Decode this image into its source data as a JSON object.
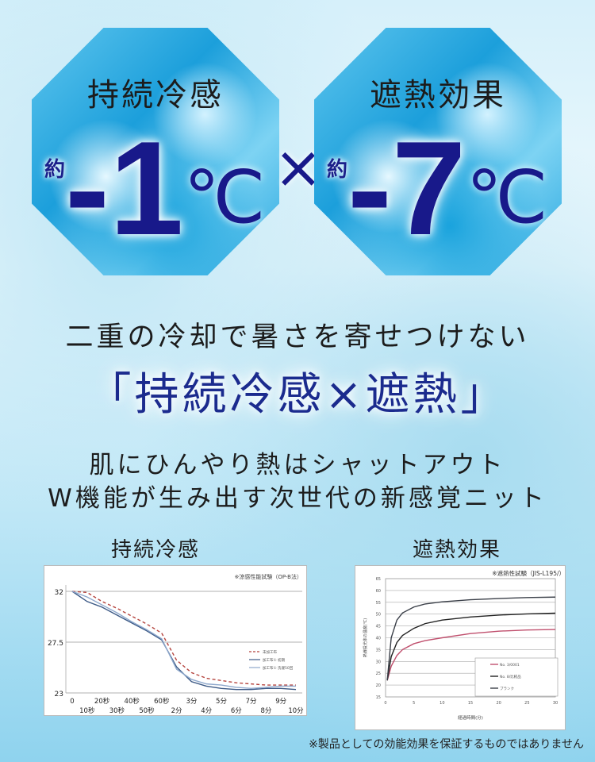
{
  "badges": [
    {
      "title": "持続冷感",
      "prefix": "約",
      "value": "-1",
      "unit": "℃"
    },
    {
      "title": "遮熱効果",
      "prefix": "約",
      "value": "-7",
      "unit": "℃"
    }
  ],
  "times": "×",
  "headline": "二重の冷却で暑さを寄せつけない",
  "main_copy": "「持続冷感×遮熱」",
  "lines": [
    "肌にひんやり熱はシャットアウト",
    "W機能が生み出す次世代の新感覚ニット"
  ],
  "footnote": "※製品としての効能効果を保証するものではありません",
  "chart_data": [
    {
      "type": "line",
      "title": "持続冷感",
      "note": "※涼感性能試験（OP-B法）",
      "categories": [
        "0",
        "10秒",
        "20秒",
        "30秒",
        "40秒",
        "50秒",
        "60秒",
        "2分",
        "3分",
        "4分",
        "5分",
        "6分",
        "7分",
        "8分",
        "9分",
        "10分"
      ],
      "yticks": [
        "23",
        "27.5",
        "32"
      ],
      "ylim": [
        23,
        32
      ],
      "grid": true,
      "legend": "right",
      "series": [
        {
          "name": "未加工布",
          "style": "dashed",
          "color": "#b5453f",
          "values": [
            32,
            31.9,
            31.1,
            30.5,
            29.8,
            29.1,
            28.3,
            25.9,
            24.8,
            24.3,
            24.1,
            23.9,
            23.8,
            23.7,
            23.7,
            23.7
          ]
        },
        {
          "name": "加工布① 初期",
          "style": "solid",
          "color": "#3d5a86",
          "values": [
            32,
            31.1,
            30.6,
            29.9,
            29.2,
            28.5,
            27.7,
            25.3,
            24.0,
            23.6,
            23.4,
            23.3,
            23.3,
            23.4,
            23.4,
            23.3
          ]
        },
        {
          "name": "加工布① 洗濯50回",
          "style": "solid",
          "color": "#8ea8cc",
          "values": [
            32,
            31.5,
            30.8,
            30.1,
            29.3,
            28.6,
            27.8,
            25.1,
            24.2,
            23.8,
            23.7,
            23.5,
            23.4,
            23.5,
            23.6,
            23.6
          ]
        }
      ]
    },
    {
      "type": "line",
      "title": "遮熱効果",
      "note": "※遮熱性試験（JIS-L195/）",
      "xlabel": "経過時間(分)",
      "ylabel": "熱線投光体の温度(℃)",
      "xlim": [
        0,
        30
      ],
      "ylim": [
        15,
        65
      ],
      "xticks": [
        "0",
        "5",
        "10",
        "15",
        "20",
        "25",
        "30"
      ],
      "yticks": [
        "15",
        "20",
        "25",
        "30",
        "35",
        "40",
        "45",
        "50",
        "55",
        "60",
        "65"
      ],
      "grid": true,
      "legend": "bottom-right",
      "x": [
        0.3,
        1,
        2,
        3,
        5,
        7,
        10,
        15,
        20,
        25,
        30
      ],
      "series": [
        {
          "name": "No. 3/0001",
          "color": "#c0506e",
          "values": [
            22,
            28,
            32.5,
            35,
            37.5,
            38.8,
            40,
            41.8,
            42.8,
            43.3,
            43.5
          ]
        },
        {
          "name": "No. 8/比較品",
          "color": "#222222",
          "values": [
            22,
            32,
            38,
            41,
            44,
            46,
            47.5,
            48.8,
            49.6,
            50.1,
            50.4
          ]
        },
        {
          "name": "ブランク",
          "color": "#3a3f48",
          "values": [
            22,
            40,
            47.5,
            50.5,
            53,
            54.3,
            55.2,
            56.1,
            56.6,
            57,
            57.2
          ]
        }
      ]
    }
  ]
}
